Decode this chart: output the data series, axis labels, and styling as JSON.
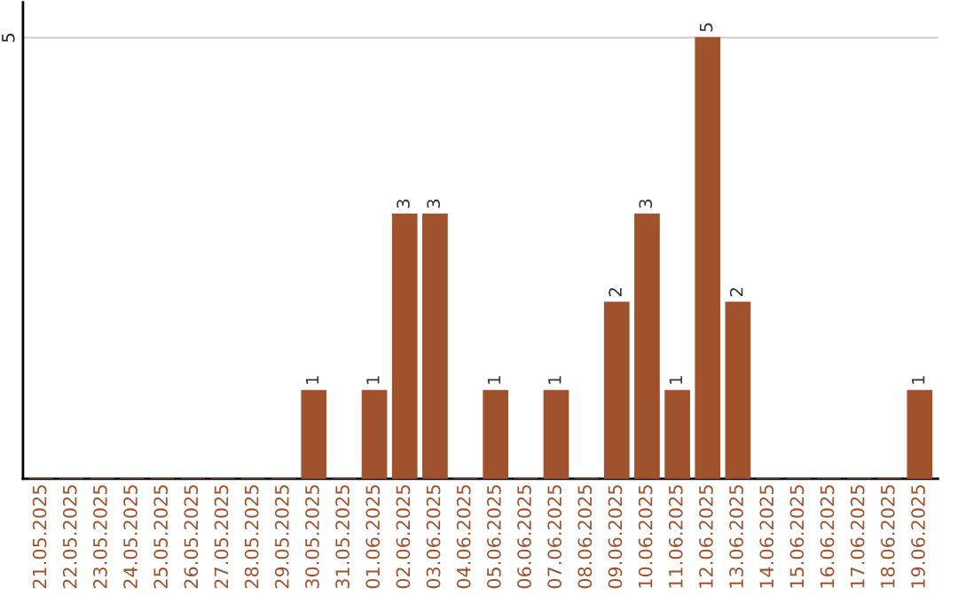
{
  "chart_data": {
    "type": "bar",
    "categories": [
      "21.05.2025",
      "22.05.2025",
      "23.05.2025",
      "24.05.2025",
      "25.05.2025",
      "26.05.2025",
      "27.05.2025",
      "28.05.2025",
      "29.05.2025",
      "30.05.2025",
      "31.05.2025",
      "01.06.2025",
      "02.06.2025",
      "03.06.2025",
      "04.06.2025",
      "05.06.2025",
      "06.06.2025",
      "07.06.2025",
      "08.06.2025",
      "09.06.2025",
      "10.06.2025",
      "11.06.2025",
      "12.06.2025",
      "13.06.2025",
      "14.06.2025",
      "15.06.2025",
      "16.06.2025",
      "17.06.2025",
      "18.06.2025",
      "19.06.2025"
    ],
    "values": [
      0,
      0,
      0,
      0,
      0,
      0,
      0,
      0,
      0,
      1,
      0,
      1,
      3,
      3,
      0,
      1,
      0,
      1,
      0,
      2,
      3,
      1,
      5,
      2,
      0,
      0,
      0,
      0,
      0,
      1
    ],
    "value_labels": [
      null,
      null,
      null,
      null,
      null,
      null,
      null,
      null,
      null,
      "1",
      null,
      "1",
      "3",
      "3",
      null,
      "1",
      null,
      "1",
      null,
      "2",
      "3",
      "1",
      "5",
      "2",
      null,
      null,
      null,
      null,
      null,
      "1"
    ],
    "color": "#a0522d",
    "ylim": [
      0,
      5.4
    ],
    "yticks": [
      5
    ],
    "grid": "y",
    "legend": false
  }
}
